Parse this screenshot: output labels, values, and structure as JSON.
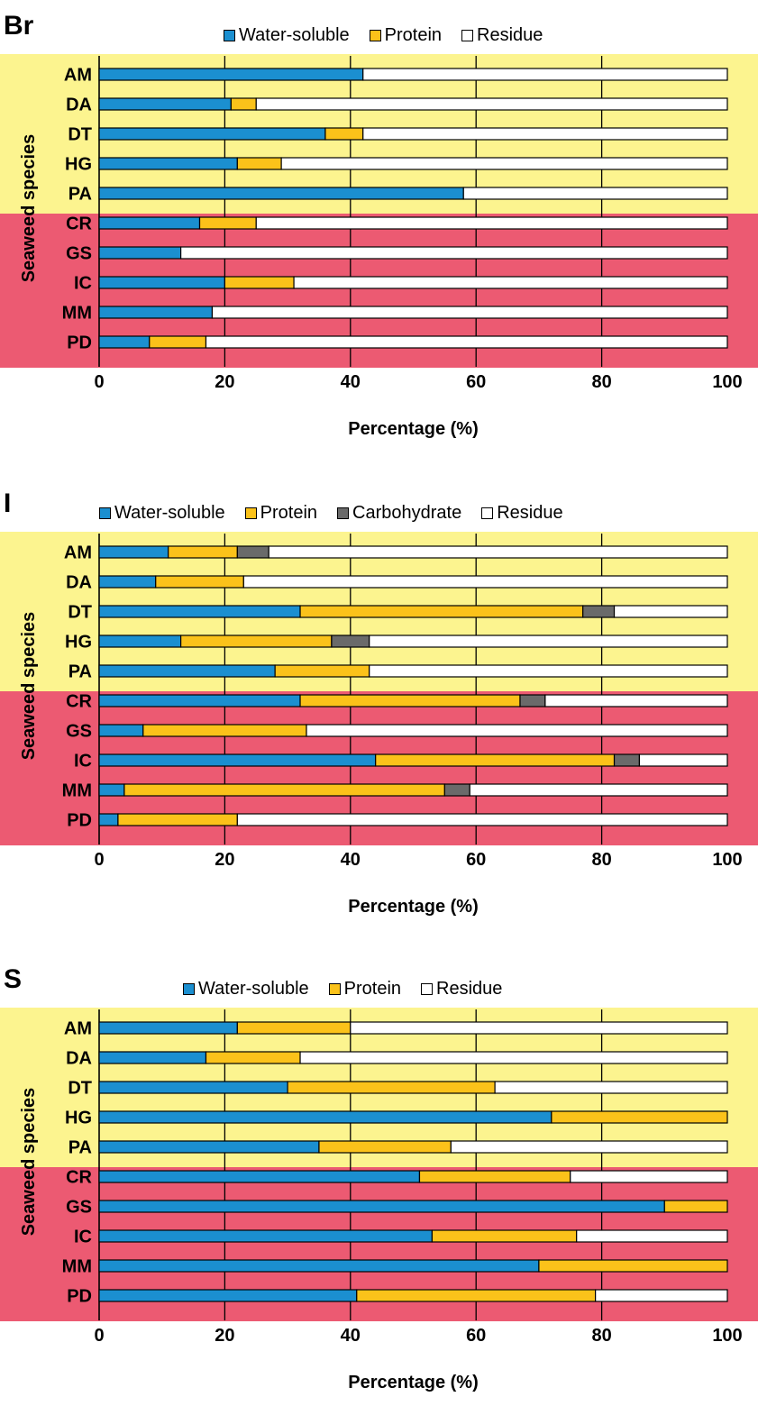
{
  "colors": {
    "water_soluble": "#1b8fd0",
    "protein": "#fbc21a",
    "carbohydrate": "#6a6a6a",
    "residue": "#ffffff",
    "group_top_bg": "#fcf48f",
    "group_bottom_bg": "#ec5a72"
  },
  "chart_data": [
    {
      "panel_label": "Br",
      "type": "bar",
      "orientation": "horizontal",
      "stacked": true,
      "xlabel": "Percentage (%)",
      "ylabel": "Seaweed species",
      "xlim": [
        0,
        100
      ],
      "xticks": [
        "0",
        "20",
        "40",
        "60",
        "80",
        "100"
      ],
      "legend_position": "top",
      "grid": true,
      "categories": [
        "AM",
        "DA",
        "DT",
        "HG",
        "PA",
        "CR",
        "GS",
        "IC",
        "MM",
        "PD"
      ],
      "series": [
        {
          "name": "Water-soluble",
          "color_key": "water_soluble",
          "values": [
            42,
            21,
            36,
            22,
            58,
            16,
            13,
            20,
            18,
            8
          ]
        },
        {
          "name": "Protein",
          "color_key": "protein",
          "values": [
            0,
            4,
            6,
            7,
            0,
            9,
            0,
            11,
            0,
            9
          ]
        },
        {
          "name": "Residue",
          "color_key": "residue",
          "values": [
            58,
            75,
            58,
            71,
            42,
            75,
            87,
            69,
            82,
            83
          ]
        }
      ]
    },
    {
      "panel_label": "I",
      "type": "bar",
      "orientation": "horizontal",
      "stacked": true,
      "xlabel": "Percentage (%)",
      "ylabel": "Seaweed species",
      "xlim": [
        0,
        100
      ],
      "xticks": [
        "0",
        "20",
        "40",
        "60",
        "80",
        "100"
      ],
      "legend_position": "top",
      "grid": true,
      "categories": [
        "AM",
        "DA",
        "DT",
        "HG",
        "PA",
        "CR",
        "GS",
        "IC",
        "MM",
        "PD"
      ],
      "series": [
        {
          "name": "Water-soluble",
          "color_key": "water_soluble",
          "values": [
            11,
            9,
            32,
            13,
            28,
            32,
            7,
            44,
            4,
            3
          ]
        },
        {
          "name": "Protein",
          "color_key": "protein",
          "values": [
            11,
            14,
            45,
            24,
            15,
            35,
            26,
            38,
            51,
            19
          ]
        },
        {
          "name": "Carbohydrate",
          "color_key": "carbohydrate",
          "values": [
            5,
            0,
            5,
            6,
            0,
            4,
            0,
            4,
            4,
            0
          ]
        },
        {
          "name": "Residue",
          "color_key": "residue",
          "values": [
            73,
            77,
            18,
            57,
            57,
            29,
            67,
            14,
            41,
            78
          ]
        }
      ]
    },
    {
      "panel_label": "S",
      "type": "bar",
      "orientation": "horizontal",
      "stacked": true,
      "xlabel": "Percentage (%)",
      "ylabel": "Seaweed species",
      "xlim": [
        0,
        100
      ],
      "xticks": [
        "0",
        "20",
        "40",
        "60",
        "80",
        "100"
      ],
      "legend_position": "top",
      "grid": true,
      "categories": [
        "AM",
        "DA",
        "DT",
        "HG",
        "PA",
        "CR",
        "GS",
        "IC",
        "MM",
        "PD"
      ],
      "series": [
        {
          "name": "Water-soluble",
          "color_key": "water_soluble",
          "values": [
            22,
            17,
            30,
            72,
            35,
            51,
            90,
            53,
            70,
            41
          ]
        },
        {
          "name": "Protein",
          "color_key": "protein",
          "values": [
            18,
            15,
            33,
            28,
            21,
            24,
            10,
            23,
            30,
            38
          ]
        },
        {
          "name": "Residue",
          "color_key": "residue",
          "values": [
            60,
            68,
            37,
            0,
            44,
            25,
            0,
            24,
            0,
            21
          ]
        }
      ]
    }
  ]
}
